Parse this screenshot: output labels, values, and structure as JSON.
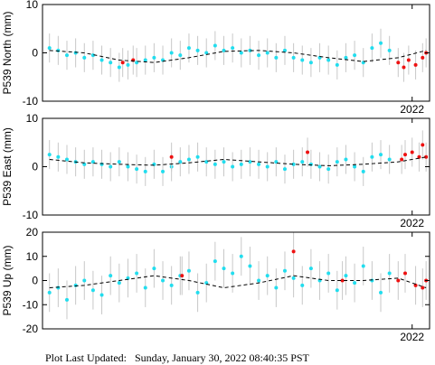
{
  "chart_data": [
    {
      "type": "scatter",
      "ylabel": "P539 North (mm)",
      "xlim": [
        2016.7,
        2022.25
      ],
      "xticks": [
        2022
      ],
      "ylim": [
        -10,
        10
      ],
      "yticks": [
        -10,
        0,
        10
      ],
      "series": [
        {
          "color": "#22ddee",
          "error": 3,
          "x": [
            2016.8,
            2016.925,
            2017.05,
            2017.175,
            2017.3,
            2017.425,
            2017.55,
            2017.675,
            2017.8,
            2017.925,
            2018.05,
            2018.175,
            2018.3,
            2018.425,
            2018.55,
            2018.675,
            2018.8,
            2018.925,
            2019.05,
            2019.175,
            2019.3,
            2019.425,
            2019.55,
            2019.675,
            2019.8,
            2019.925,
            2020.05,
            2020.175,
            2020.3,
            2020.425,
            2020.55,
            2020.675,
            2020.8,
            2020.925,
            2021.05,
            2021.175,
            2021.3,
            2021.425,
            2021.55,
            2021.675
          ],
          "values": [
            1,
            0.5,
            -0.5,
            0,
            -1,
            -0.5,
            -1.5,
            -2,
            -3,
            -2.5,
            -2,
            -1.5,
            -1,
            -1.5,
            0,
            -0.5,
            1,
            0.5,
            0,
            1.5,
            0.5,
            1,
            0,
            0.5,
            -0.5,
            0,
            -1,
            0.5,
            -1,
            -1.5,
            -2,
            -1,
            -1.5,
            -2.5,
            -1,
            -0.5,
            -2,
            1,
            2,
            0.5
          ]
        },
        {
          "color": "#ee1111",
          "error": 3,
          "x": [
            2017.85,
            2018.0,
            2021.8,
            2021.88,
            2021.95,
            2022.05,
            2022.15,
            2022.2
          ],
          "values": [
            -2,
            -1.5,
            -2,
            -3,
            -1.5,
            -2.5,
            -1,
            0
          ]
        },
        {
          "color": "#000000",
          "line": "dashed",
          "x": [
            2016.8,
            2017.3,
            2017.8,
            2018.3,
            2018.8,
            2019.3,
            2019.8,
            2020.3,
            2020.8,
            2021.3,
            2021.8,
            2022.2
          ],
          "values": [
            0.5,
            0,
            -1.5,
            -2,
            -1,
            0.3,
            0.5,
            0,
            -1,
            -1.8,
            -1,
            0.5
          ]
        }
      ]
    },
    {
      "type": "scatter",
      "ylabel": "P539 East (mm)",
      "xlim": [
        2016.7,
        2022.25
      ],
      "xticks": [
        2022
      ],
      "ylim": [
        -10,
        10
      ],
      "yticks": [
        -10,
        0,
        10
      ],
      "series": [
        {
          "color": "#22ddee",
          "error": 3,
          "x": [
            2016.8,
            2016.925,
            2017.05,
            2017.175,
            2017.3,
            2017.425,
            2017.55,
            2017.675,
            2017.8,
            2017.925,
            2018.05,
            2018.175,
            2018.3,
            2018.425,
            2018.55,
            2018.675,
            2018.8,
            2018.925,
            2019.05,
            2019.175,
            2019.3,
            2019.425,
            2019.55,
            2019.675,
            2019.8,
            2019.925,
            2020.05,
            2020.175,
            2020.3,
            2020.425,
            2020.55,
            2020.675,
            2020.8,
            2020.925,
            2021.05,
            2021.175,
            2021.3,
            2021.425,
            2021.55,
            2021.675
          ],
          "values": [
            2.5,
            2,
            1.5,
            1,
            0.5,
            1,
            0.5,
            0,
            1,
            0,
            -0.5,
            -1,
            0.5,
            -1,
            0,
            1,
            1.5,
            2,
            1,
            0.5,
            1,
            0,
            0.5,
            1,
            0.5,
            0,
            1,
            -0.5,
            0.5,
            1,
            0.5,
            0,
            -0.5,
            1,
            1.5,
            0,
            -1,
            2,
            2.5,
            1.5
          ]
        },
        {
          "color": "#ee1111",
          "error": 3,
          "x": [
            2018.55,
            2020.5,
            2021.85,
            2021.9,
            2022.0,
            2022.1,
            2022.15,
            2022.2
          ],
          "values": [
            2,
            3,
            1.5,
            2.5,
            3,
            2,
            4.5,
            2
          ]
        },
        {
          "color": "#000000",
          "line": "dashed",
          "x": [
            2016.8,
            2017.3,
            2017.8,
            2018.3,
            2018.8,
            2019.3,
            2019.8,
            2020.3,
            2020.8,
            2021.3,
            2021.8,
            2022.2
          ],
          "values": [
            1.5,
            0.8,
            0.5,
            0.3,
            0.8,
            1.5,
            1,
            0.5,
            0.2,
            0.5,
            1,
            2
          ]
        }
      ]
    },
    {
      "type": "scatter",
      "ylabel": "P539 Up (mm)",
      "xlim": [
        2016.7,
        2022.25
      ],
      "xticks": [
        2022
      ],
      "ylim": [
        -20,
        20
      ],
      "yticks": [
        -20,
        -10,
        0,
        10,
        20
      ],
      "series": [
        {
          "color": "#22ddee",
          "error": 8,
          "x": [
            2016.8,
            2016.925,
            2017.05,
            2017.175,
            2017.3,
            2017.425,
            2017.55,
            2017.675,
            2017.8,
            2017.925,
            2018.05,
            2018.175,
            2018.3,
            2018.425,
            2018.55,
            2018.675,
            2018.8,
            2018.925,
            2019.05,
            2019.175,
            2019.3,
            2019.425,
            2019.55,
            2019.675,
            2019.8,
            2019.925,
            2020.05,
            2020.175,
            2020.3,
            2020.425,
            2020.55,
            2020.675,
            2020.8,
            2020.925,
            2021.05,
            2021.175,
            2021.3,
            2021.425,
            2021.55,
            2021.675
          ],
          "values": [
            -5,
            -3,
            -8,
            -2,
            0,
            -4,
            -6,
            2,
            -1,
            1,
            3,
            -3,
            5,
            0,
            -2,
            2,
            4,
            -5,
            -1,
            8,
            5,
            3,
            10,
            6,
            0,
            2,
            -3,
            4,
            1,
            -2,
            5,
            0,
            3,
            -4,
            2,
            -1,
            6,
            0,
            -5,
            3
          ]
        },
        {
          "color": "#ee1111",
          "error": 8,
          "x": [
            2018.7,
            2020.3,
            2021.0,
            2021.8,
            2021.9,
            2022.05,
            2022.15,
            2022.2
          ],
          "values": [
            2,
            12,
            0,
            0,
            3,
            -2,
            -3,
            0
          ]
        },
        {
          "color": "#000000",
          "line": "dashed",
          "x": [
            2016.8,
            2017.3,
            2017.8,
            2018.3,
            2018.8,
            2019.3,
            2019.8,
            2020.3,
            2020.8,
            2021.3,
            2021.8,
            2022.2
          ],
          "values": [
            -3,
            -2,
            0,
            2,
            0,
            -3,
            -1,
            2,
            0,
            0,
            1,
            -3
          ]
        }
      ]
    }
  ],
  "footer": "Plot Last Updated:   Sunday, January 30, 2022 08:40:35 PST"
}
